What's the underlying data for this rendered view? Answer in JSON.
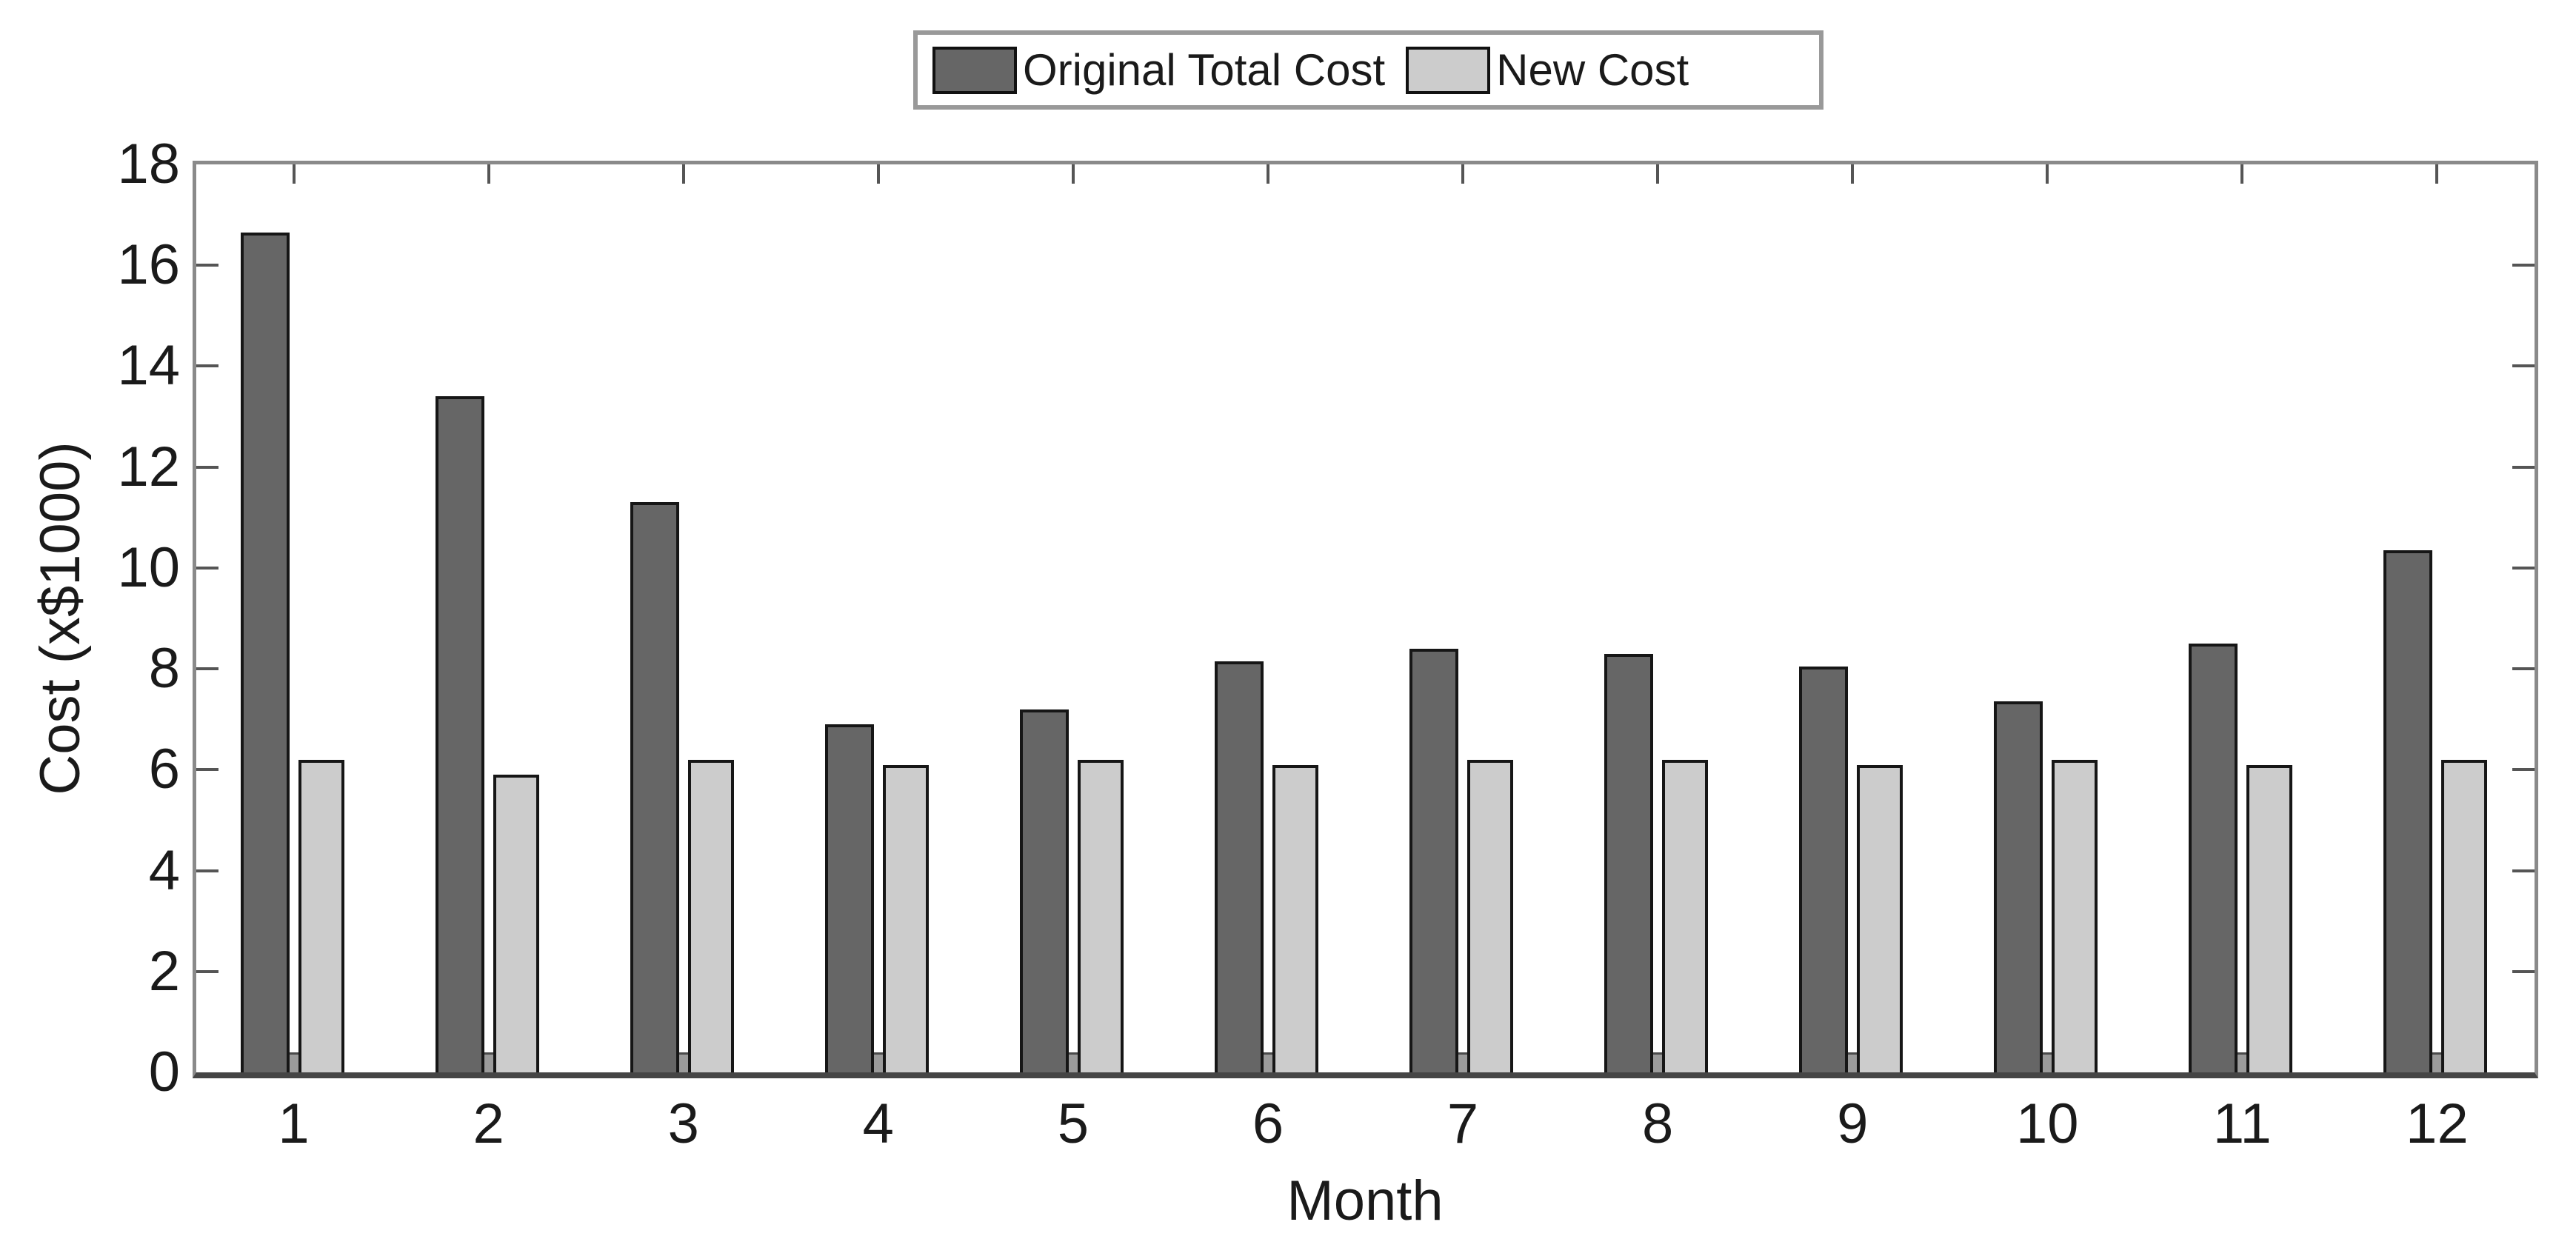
{
  "figure": {
    "background_color": "#ffffff",
    "text_color": "#1a1a1a",
    "frame_color": "#8a8a8a",
    "baseline_color": "#454545",
    "tick_color": "#555555",
    "legend_border_color": "#999999"
  },
  "legend": {
    "items": [
      {
        "label": "Original Total Cost",
        "swatch_color": "#666666"
      },
      {
        "label": "New Cost",
        "swatch_color": "#cccccc"
      }
    ]
  },
  "chart_data": {
    "type": "bar",
    "title": "",
    "categories": [
      "1",
      "2",
      "3",
      "4",
      "5",
      "6",
      "7",
      "8",
      "9",
      "10",
      "11",
      "12"
    ],
    "series": [
      {
        "name": "Original Total Cost",
        "color": "#666666",
        "edge_color": "#161616",
        "values": [
          16.65,
          13.4,
          11.3,
          6.9,
          7.2,
          8.15,
          8.4,
          8.3,
          8.05,
          7.35,
          8.5,
          10.35
        ]
      },
      {
        "name": "New Cost",
        "color": "#cccccc",
        "edge_color": "#161616",
        "values": [
          6.2,
          5.9,
          6.2,
          6.1,
          6.2,
          6.1,
          6.2,
          6.2,
          6.1,
          6.2,
          6.1,
          6.2
        ]
      }
    ],
    "thin_intermediate_bars": {
      "color": "#9b9b9b",
      "values": [
        0.4,
        0.4,
        0.4,
        0.4,
        0.4,
        0.4,
        0.4,
        0.4,
        0.4,
        0.4,
        0.4,
        0.4
      ]
    },
    "xlabel": "Month",
    "ylabel": "Cost (x$1000)",
    "ylim": [
      0,
      18
    ],
    "yticks": [
      0,
      2,
      4,
      6,
      8,
      10,
      12,
      14,
      16,
      18
    ],
    "grid": false,
    "legend_position": "top-center"
  }
}
